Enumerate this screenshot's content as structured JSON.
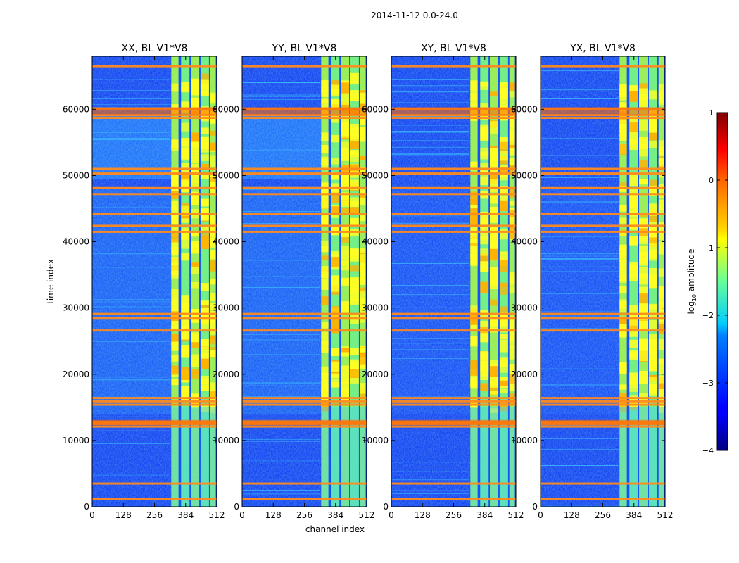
{
  "chart_data": {
    "type": "heatmap",
    "suptitle": "2014-11-12 0.0-24.0",
    "xlabel": "channel index",
    "ylabel": "time index",
    "xlim": [
      0,
      512
    ],
    "ylim": [
      0,
      68000
    ],
    "xticks": [
      0,
      128,
      256,
      384,
      512
    ],
    "yticks": [
      0,
      10000,
      20000,
      30000,
      40000,
      50000,
      60000
    ],
    "panels": [
      {
        "title": "XX, BL V1*V8",
        "label_y_ticks": true
      },
      {
        "title": "YY, BL V1*V8",
        "label_y_ticks": true
      },
      {
        "title": "XY, BL V1*V8",
        "label_y_ticks": true
      },
      {
        "title": "YX, BL V1*V8",
        "label_y_ticks": true
      }
    ],
    "colorbar": {
      "label": "log10 amplitude",
      "label_main": "log",
      "label_sub": "10",
      "label_rest": " amplitude",
      "range": [
        -4,
        1
      ],
      "ticks": [
        1,
        0,
        -1,
        -2,
        -3,
        -4
      ],
      "tick_labels": [
        "1",
        "0",
        "−1",
        "−2",
        "−3",
        "−4"
      ]
    },
    "flag_rows_time": [
      1200,
      3500,
      12100,
      12500,
      12800,
      15400,
      15900,
      16400,
      26600,
      28500,
      29100,
      41500,
      42400,
      44200,
      47200,
      48100,
      50300,
      51000,
      58700,
      59100,
      60100,
      66500
    ],
    "bright_channel_bands": [
      [
        325,
        355
      ],
      [
        365,
        400
      ],
      [
        405,
        440
      ],
      [
        445,
        480
      ],
      [
        485,
        510
      ]
    ]
  }
}
